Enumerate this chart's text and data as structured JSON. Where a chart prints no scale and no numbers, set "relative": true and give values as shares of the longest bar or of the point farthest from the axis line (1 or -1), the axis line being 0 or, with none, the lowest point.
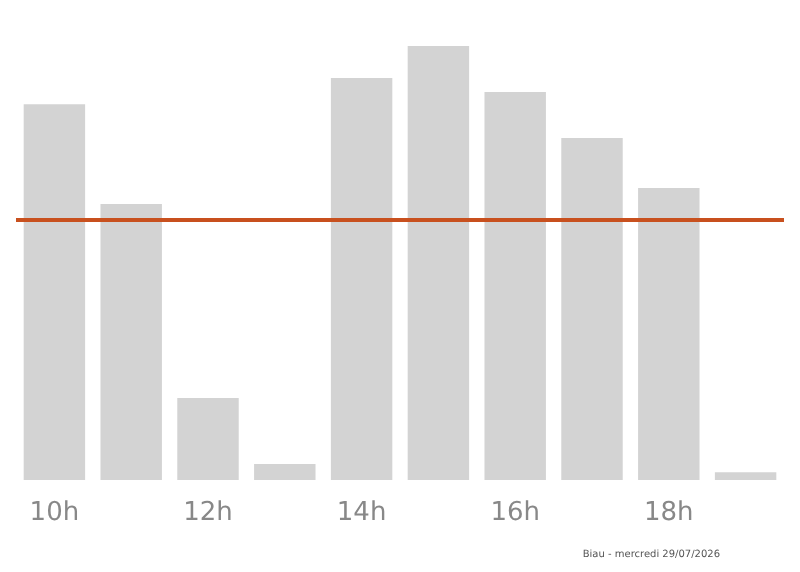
{
  "chart_data": {
    "type": "bar",
    "relative": true,
    "categories": [
      "10h",
      null,
      "12h",
      null,
      "14h",
      null,
      "16h",
      null,
      "18h",
      null
    ],
    "values": [
      0.866,
      0.636,
      0.189,
      0.037,
      0.926,
      1,
      0.894,
      0.788,
      0.673,
      0.018
    ],
    "color": "#d3d3d3",
    "ref_lines": [
      {
        "axis": "y",
        "value": 0.604,
        "color": "#c8501e"
      }
    ],
    "annotations": [
      "Biau - mercredi 29/07/2026"
    ]
  }
}
